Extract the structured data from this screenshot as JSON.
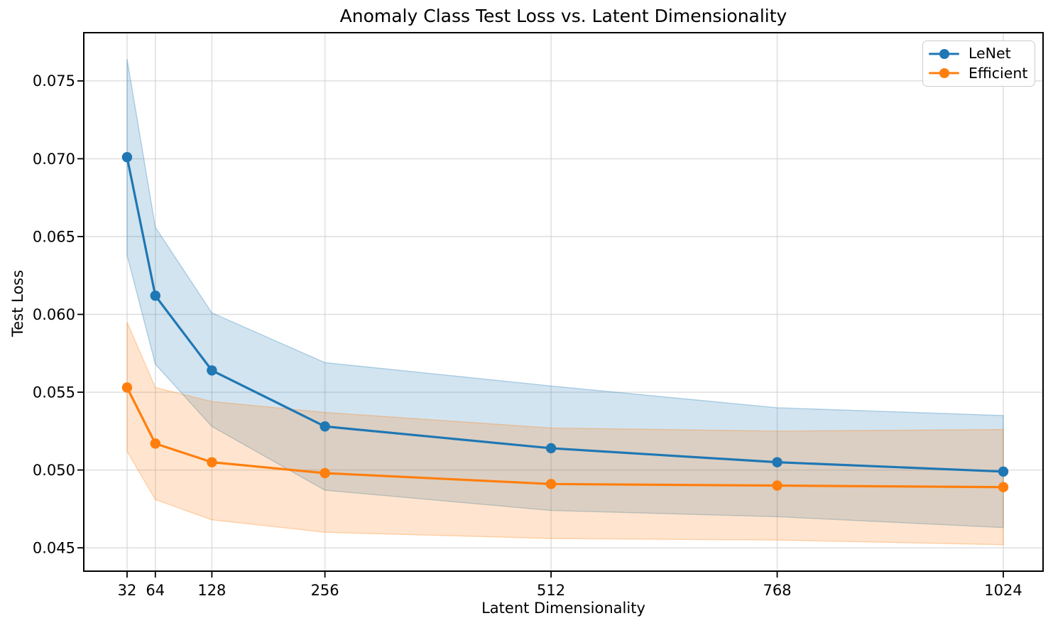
{
  "chart_data": {
    "type": "line",
    "title": "Anomaly Class Test Loss vs. Latent Dimensionality",
    "xlabel": "Latent Dimensionality",
    "ylabel": "Test Loss",
    "x": [
      32,
      64,
      128,
      256,
      512,
      768,
      1024
    ],
    "xtick_labels": [
      "32",
      "64",
      "128",
      "256",
      "512",
      "768",
      "1024"
    ],
    "yticks": [
      0.045,
      0.05,
      0.055,
      0.06,
      0.065,
      0.07,
      0.075
    ],
    "ytick_labels": [
      "0.045",
      "0.050",
      "0.055",
      "0.060",
      "0.065",
      "0.070",
      "0.075"
    ],
    "xlim": [
      -17,
      1069
    ],
    "ylim": [
      0.0435,
      0.0781
    ],
    "grid": true,
    "legend_position": "upper right",
    "series": [
      {
        "name": "LeNet",
        "color": "#1f77b4",
        "values": [
          0.0701,
          0.0612,
          0.0564,
          0.0528,
          0.0514,
          0.0505,
          0.0499
        ],
        "band_lower": [
          0.0638,
          0.0568,
          0.0528,
          0.0487,
          0.0474,
          0.047,
          0.0463
        ],
        "band_upper": [
          0.0764,
          0.0656,
          0.0601,
          0.0569,
          0.0554,
          0.054,
          0.0535
        ]
      },
      {
        "name": "Efficient",
        "color": "#ff7f0e",
        "values": [
          0.0553,
          0.0517,
          0.0505,
          0.0498,
          0.0491,
          0.049,
          0.0489
        ],
        "band_lower": [
          0.0512,
          0.0481,
          0.0468,
          0.046,
          0.0456,
          0.0455,
          0.0452
        ],
        "band_upper": [
          0.0595,
          0.0553,
          0.0544,
          0.0537,
          0.0527,
          0.0525,
          0.0526
        ]
      }
    ],
    "band_alpha": 0.2,
    "styles": {
      "background": "#ffffff",
      "grid_color": "#c9c9c9",
      "spine_color": "#000000",
      "text_color": "#000000",
      "legend_border": "#cccccc"
    }
  }
}
